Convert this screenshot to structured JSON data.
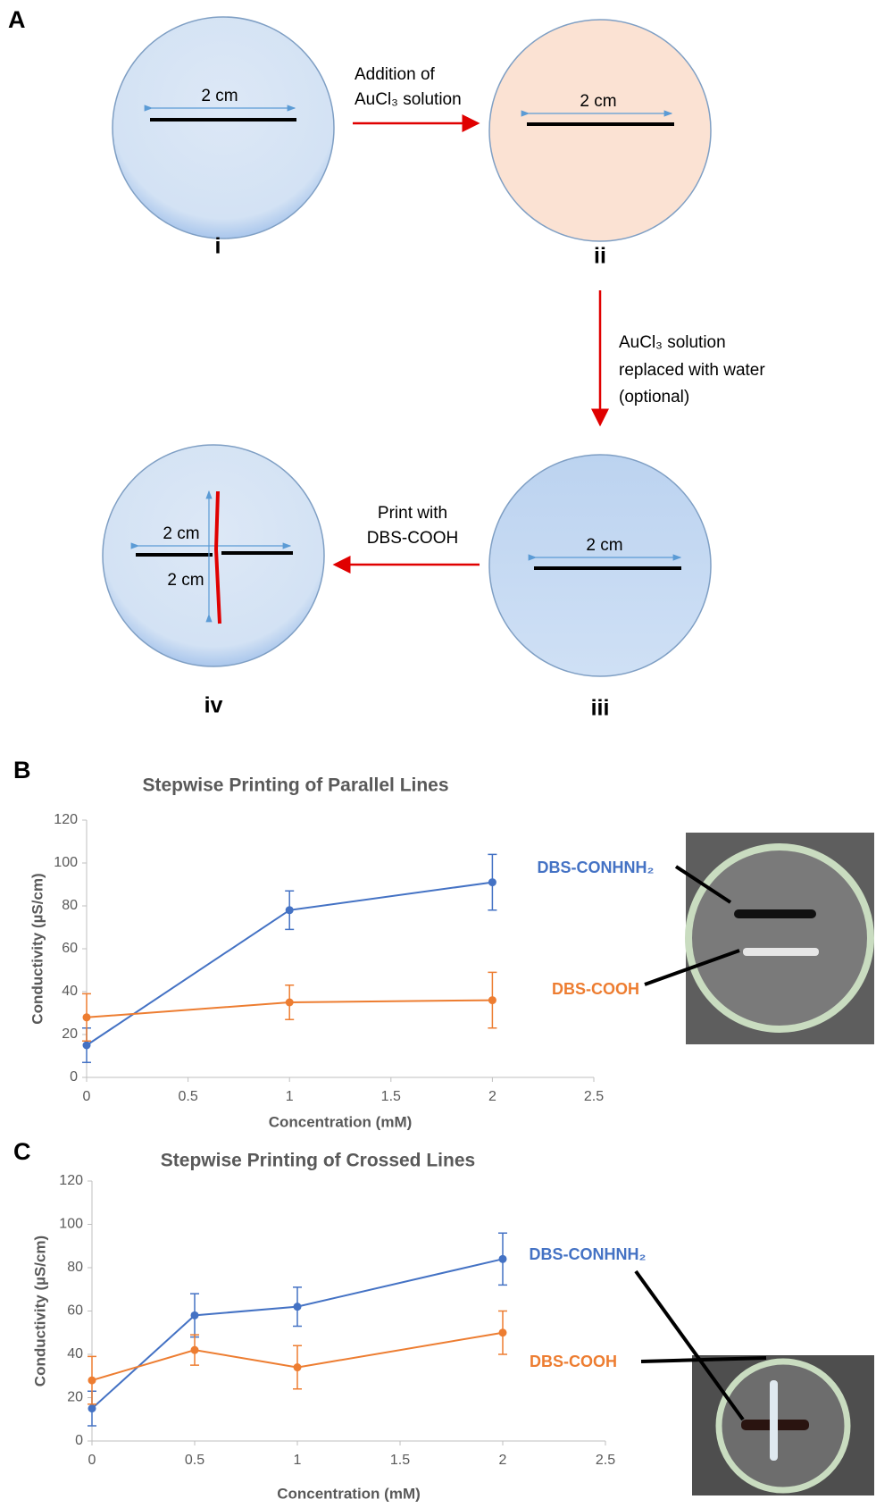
{
  "panel_labels": [
    "A",
    "B",
    "C"
  ],
  "diagram": {
    "dishes": [
      {
        "label": "i",
        "lengths": [
          "2 cm"
        ]
      },
      {
        "label": "ii",
        "lengths": [
          "2 cm"
        ]
      },
      {
        "label": "iii",
        "lengths": [
          "2 cm"
        ]
      },
      {
        "label": "iv",
        "lengths": [
          "2 cm",
          "2 cm"
        ]
      }
    ],
    "steps": [
      {
        "lines": [
          "Addition of",
          "AuCl₃ solution"
        ]
      },
      {
        "lines": [
          "AuCl₃ solution",
          "replaced with water",
          "(optional)"
        ]
      },
      {
        "lines": [
          "Print with",
          "DBS-COOH"
        ]
      }
    ]
  },
  "chart_data": [
    {
      "type": "line",
      "title": "Stepwise Printing of Parallel Lines",
      "x_label": "Concentration (mM)",
      "y_label": "Conductivity (µS/cm)",
      "x": [
        0,
        1,
        2
      ],
      "series": [
        {
          "name": "DBS-CONHNH₂",
          "color": "#4472c4",
          "values": [
            15,
            78,
            91
          ],
          "errors": [
            8,
            9,
            13
          ]
        },
        {
          "name": "DBS-COOH",
          "color": "#ed7d31",
          "values": [
            28,
            35,
            36
          ],
          "errors": [
            11,
            8,
            13
          ]
        }
      ],
      "xlim": [
        0,
        2.5
      ],
      "xticks": [
        0,
        0.5,
        1,
        1.5,
        2,
        2.5
      ],
      "ylim": [
        0,
        120
      ],
      "yticks": [
        0,
        20,
        40,
        60,
        80,
        100,
        120
      ],
      "grid": false
    },
    {
      "type": "line",
      "title": "Stepwise Printing of Crossed Lines",
      "x_label": "Concentration (mM)",
      "y_label": "Conductivity (µS/cm)",
      "x": [
        0,
        0.5,
        1,
        2
      ],
      "series": [
        {
          "name": "DBS-CONHNH₂",
          "color": "#4472c4",
          "values": [
            15,
            58,
            62,
            84
          ],
          "errors": [
            8,
            10,
            9,
            12
          ]
        },
        {
          "name": "DBS-COOH",
          "color": "#ed7d31",
          "values": [
            28,
            42,
            34,
            50
          ],
          "errors": [
            11,
            7,
            10,
            10
          ]
        }
      ],
      "xlim": [
        0,
        2.5
      ],
      "xticks": [
        0,
        0.5,
        1,
        1.5,
        2,
        2.5
      ],
      "ylim": [
        0,
        120
      ],
      "yticks": [
        0,
        20,
        40,
        60,
        80,
        100,
        120
      ],
      "grid": false
    }
  ]
}
